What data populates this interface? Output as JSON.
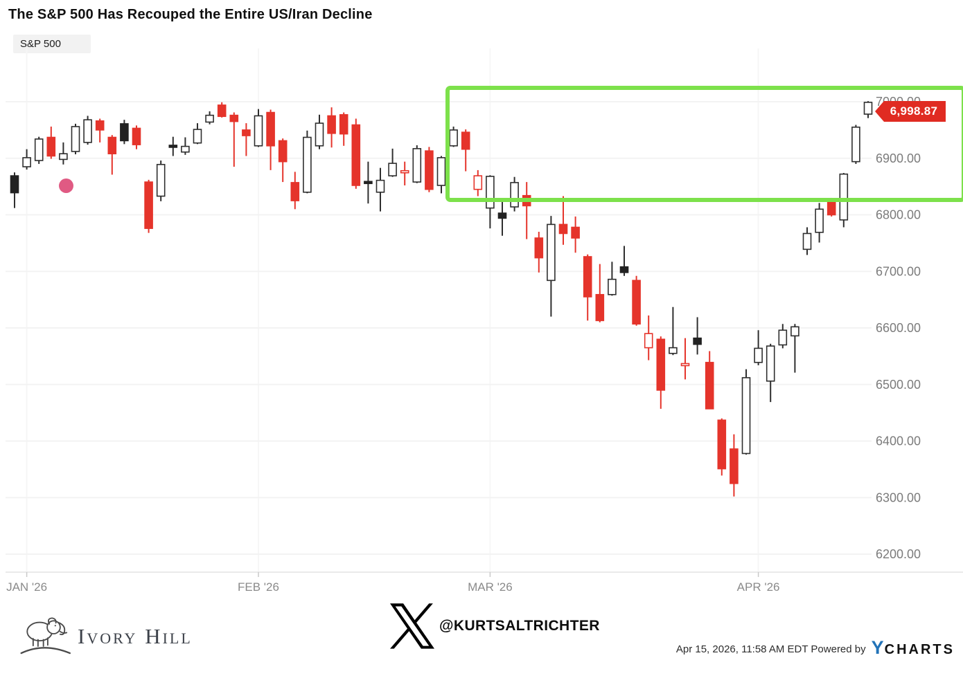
{
  "title": "The S&P 500 Has Recouped the Entire US/Iran Decline",
  "legend": {
    "label": "S&P 500"
  },
  "price_flag": {
    "value": "6,998.87",
    "bg_color": "#e02b22",
    "text_color": "#ffffff"
  },
  "annotations": {
    "highlight_box_color": "#7de14b",
    "dot_color": "#e05a83"
  },
  "colors": {
    "up_candle_outline": "#2e2e2e",
    "down_candle": "#e5342b",
    "black_candle": "#222222",
    "grid": "#f3f3f3",
    "axis_text": "#7b7b7b"
  },
  "chart_data": {
    "type": "candlestick",
    "title": "S&P 500",
    "ylabel": "",
    "xlabel": "",
    "ylim": [
      6200,
      7000
    ],
    "grid": "horizontal-light",
    "legend_position": "top-left",
    "last_price": 6998.87,
    "y_ticks": [
      {
        "price": 7000,
        "label": "7000.00"
      },
      {
        "price": 6900,
        "label": "6900.00"
      },
      {
        "price": 6800,
        "label": "6800.00"
      },
      {
        "price": 6700,
        "label": "6700.00"
      },
      {
        "price": 6600,
        "label": "6600.00"
      },
      {
        "price": 6500,
        "label": "6500.00"
      },
      {
        "price": 6400,
        "label": "6400.00"
      },
      {
        "price": 6300,
        "label": "6300.00"
      },
      {
        "price": 6200,
        "label": "6200.00"
      }
    ],
    "x_ticks": [
      {
        "label": "JAN '26",
        "index": 1
      },
      {
        "label": "FEB '26",
        "index": 20
      },
      {
        "label": "MAR '26",
        "index": 39
      },
      {
        "label": "APR '26",
        "index": 61
      }
    ],
    "candle_styles": {
      "u": "hollow-up",
      "d": "red-down",
      "k": "black-filled",
      "h": "red-hollow"
    },
    "candles": [
      [
        6869,
        6875,
        6812,
        6839,
        "k"
      ],
      [
        6885,
        6916,
        6880,
        6901,
        "u"
      ],
      [
        6896,
        6938,
        6890,
        6934,
        "u"
      ],
      [
        6937,
        6956,
        6899,
        6904,
        "d"
      ],
      [
        6898,
        6928,
        6889,
        6908,
        "u"
      ],
      [
        6912,
        6961,
        6907,
        6956,
        "u"
      ],
      [
        6928,
        6975,
        6924,
        6968,
        "u"
      ],
      [
        6966,
        6970,
        6928,
        6950,
        "d"
      ],
      [
        6937,
        6941,
        6871,
        6908,
        "d"
      ],
      [
        6961,
        6968,
        6925,
        6931,
        "k"
      ],
      [
        6953,
        6958,
        6916,
        6924,
        "d"
      ],
      [
        6858,
        6862,
        6768,
        6776,
        "d"
      ],
      [
        6833,
        6896,
        6824,
        6889,
        "u"
      ],
      [
        6923,
        6938,
        6904,
        6920,
        "k"
      ],
      [
        6911,
        6937,
        6906,
        6921,
        "u"
      ],
      [
        6927,
        6962,
        6925,
        6951,
        "u"
      ],
      [
        6964,
        6983,
        6960,
        6976,
        "u"
      ],
      [
        6994,
        6999,
        6972,
        6974,
        "d"
      ],
      [
        6976,
        6981,
        6885,
        6965,
        "d"
      ],
      [
        6950,
        6962,
        6904,
        6940,
        "d"
      ],
      [
        6922,
        6987,
        6920,
        6975,
        "u"
      ],
      [
        6981,
        6986,
        6879,
        6922,
        "d"
      ],
      [
        6931,
        6935,
        6858,
        6894,
        "d"
      ],
      [
        6857,
        6876,
        6810,
        6825,
        "d"
      ],
      [
        6840,
        6949,
        6838,
        6937,
        "u"
      ],
      [
        6922,
        6977,
        6916,
        6962,
        "u"
      ],
      [
        6975,
        6990,
        6919,
        6944,
        "d"
      ],
      [
        6977,
        6981,
        6922,
        6943,
        "d"
      ],
      [
        6959,
        6970,
        6846,
        6852,
        "d"
      ],
      [
        6859,
        6894,
        6820,
        6856,
        "k"
      ],
      [
        6840,
        6883,
        6806,
        6861,
        "u"
      ],
      [
        6869,
        6917,
        6867,
        6891,
        "u"
      ],
      [
        6875,
        6894,
        6852,
        6878,
        "h"
      ],
      [
        6858,
        6923,
        6856,
        6917,
        "u"
      ],
      [
        6913,
        6920,
        6840,
        6845,
        "d"
      ],
      [
        6852,
        6904,
        6838,
        6901,
        "u"
      ],
      [
        6922,
        6956,
        6920,
        6950,
        "u"
      ],
      [
        6946,
        6951,
        6877,
        6916,
        "d"
      ],
      [
        6845,
        6879,
        6833,
        6869,
        "h"
      ],
      [
        6812,
        6870,
        6776,
        6868,
        "u"
      ],
      [
        6803,
        6824,
        6763,
        6794,
        "k"
      ],
      [
        6814,
        6867,
        6806,
        6857,
        "u"
      ],
      [
        6834,
        6858,
        6757,
        6816,
        "d"
      ],
      [
        6759,
        6770,
        6698,
        6724,
        "d"
      ],
      [
        6684,
        6798,
        6620,
        6783,
        "u"
      ],
      [
        6783,
        6833,
        6747,
        6767,
        "d"
      ],
      [
        6778,
        6797,
        6733,
        6759,
        "d"
      ],
      [
        6726,
        6730,
        6613,
        6655,
        "d"
      ],
      [
        6659,
        6713,
        6610,
        6613,
        "d"
      ],
      [
        6659,
        6717,
        6657,
        6686,
        "u"
      ],
      [
        6708,
        6745,
        6692,
        6698,
        "k"
      ],
      [
        6684,
        6692,
        6604,
        6607,
        "d"
      ],
      [
        6565,
        6622,
        6543,
        6590,
        "h"
      ],
      [
        6580,
        6585,
        6457,
        6490,
        "d"
      ],
      [
        6555,
        6637,
        6552,
        6565,
        "u"
      ],
      [
        6534,
        6582,
        6509,
        6537,
        "h"
      ],
      [
        6582,
        6619,
        6553,
        6571,
        "k"
      ],
      [
        6539,
        6559,
        6457,
        6457,
        "d"
      ],
      [
        6437,
        6440,
        6339,
        6351,
        "d"
      ],
      [
        6386,
        6412,
        6302,
        6325,
        "d"
      ],
      [
        6378,
        6527,
        6376,
        6512,
        "u"
      ],
      [
        6539,
        6596,
        6534,
        6564,
        "u"
      ],
      [
        6506,
        6572,
        6469,
        6568,
        "u"
      ],
      [
        6570,
        6607,
        6564,
        6596,
        "u"
      ],
      [
        6586,
        6607,
        6521,
        6602,
        "u"
      ],
      [
        6739,
        6778,
        6729,
        6767,
        "u"
      ],
      [
        6769,
        6821,
        6751,
        6810,
        "u"
      ],
      [
        6825,
        6830,
        6797,
        6800,
        "d"
      ],
      [
        6791,
        6874,
        6778,
        6872,
        "u"
      ],
      [
        6894,
        6959,
        6890,
        6955,
        "u"
      ],
      [
        6978,
        7001,
        6971,
        6998.87,
        "u"
      ]
    ]
  },
  "footer": {
    "brand": "Ivory Hill",
    "handle": "@KURTSALTRICHTER",
    "timestamp": "Apr 15, 2026, 11:58 AM EDT Powered by",
    "ycharts_y": "Y",
    "ycharts_rest": "CHARTS"
  }
}
